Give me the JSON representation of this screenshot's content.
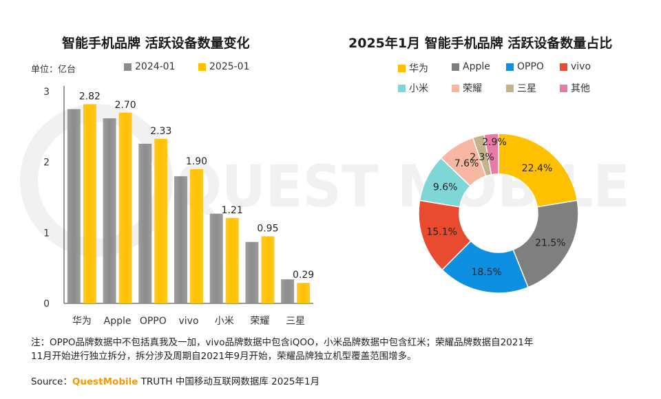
{
  "watermark": "QUEST MOBILE",
  "left": {
    "title": "智能手机品牌 活跃设备数量变化",
    "unit": "单位：亿台"
  },
  "right": {
    "title": "2025年1月 智能手机品牌 活跃设备数量占比"
  },
  "note_line1": "注：OPPO品牌数据中不包括真我及一加，vivo品牌数据中包含iQOO，小米品牌数据中包含红米；荣耀品牌数据自2021年",
  "note_line2": "11月开始进行独立拆分，拆分涉及周期自2021年9月开始，荣耀品牌独立机型覆盖范围增多。",
  "source": {
    "prefix": "Source：",
    "brand": "QuestMobile",
    "suffix": " TRUTH 中国移动互联网数据库 2025年1月"
  },
  "chart_data": [
    {
      "type": "bar",
      "title": "智能手机品牌 活跃设备数量变化",
      "unit": "单位：亿台",
      "categories": [
        "华为",
        "Apple",
        "OPPO",
        "vivo",
        "小米",
        "荣耀",
        "三星"
      ],
      "series": [
        {
          "name": "2024-01",
          "color": "#8c8c8c",
          "values": [
            2.75,
            2.62,
            2.26,
            1.8,
            1.27,
            0.87,
            0.34
          ]
        },
        {
          "name": "2025-01",
          "color": "#ffc000",
          "values": [
            2.82,
            2.7,
            2.33,
            1.9,
            1.21,
            0.95,
            0.29
          ]
        }
      ],
      "data_labels_series": "2025-01",
      "data_labels": [
        "2.82",
        "2.70",
        "2.33",
        "1.90",
        "1.21",
        "0.95",
        "0.29"
      ],
      "yticks": [
        "0",
        "1",
        "2",
        "3"
      ],
      "ylim": [
        0,
        3
      ],
      "legend_position": "top",
      "grid": false
    },
    {
      "type": "pie",
      "variant": "donut",
      "title": "2025年1月 智能手机品牌 活跃设备数量占比",
      "slices": [
        {
          "label": "华为",
          "value": 22.4,
          "text": "22.4%",
          "color": "#ffc000"
        },
        {
          "label": "Apple",
          "value": 21.5,
          "text": "21.5%",
          "color": "#7f7f7f"
        },
        {
          "label": "OPPO",
          "value": 18.5,
          "text": "18.5%",
          "color": "#0f8fe0"
        },
        {
          "label": "vivo",
          "value": 15.1,
          "text": "15.1%",
          "color": "#e84b2f"
        },
        {
          "label": "小米",
          "value": 9.6,
          "text": "9.6%",
          "color": "#7fd6d6"
        },
        {
          "label": "荣耀",
          "value": 7.6,
          "text": "7.6%",
          "color": "#f7b7a3"
        },
        {
          "label": "三星",
          "value": 2.3,
          "text": "2.3%",
          "color": "#c4b28a"
        },
        {
          "label": "其他",
          "value": 2.9,
          "text": "2.9%",
          "color": "#e87aa6"
        }
      ],
      "legend_position": "top"
    }
  ]
}
